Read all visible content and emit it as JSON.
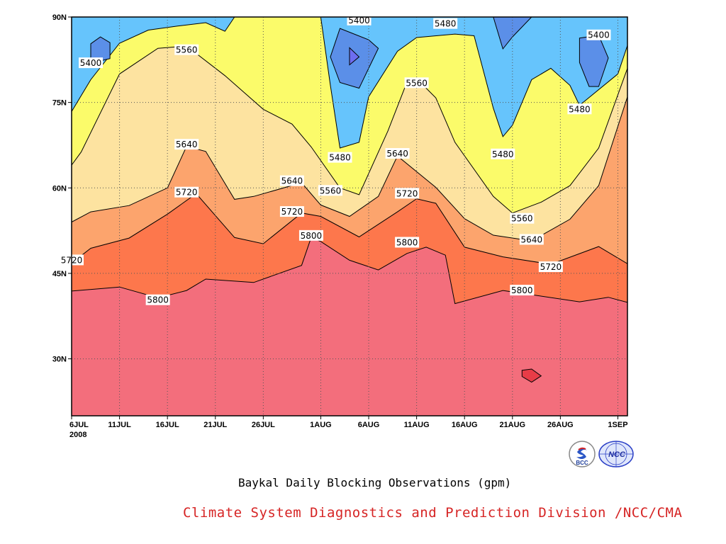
{
  "chart_data": {
    "type": "heatmap",
    "title": "Baykal Daily Blocking Observations (gpm)",
    "credit": "Climate System Diagnostics and Prediction Division /NCC/CMA",
    "x_ticks": [
      "6JUL",
      "11JUL",
      "16JUL",
      "21JUL",
      "26JUL",
      "1AUG",
      "6AUG",
      "11AUG",
      "16AUG",
      "21AUG",
      "26AUG",
      "1SEP"
    ],
    "x_year_label": "2008",
    "y_ticks": [
      "30N",
      "45N",
      "60N",
      "75N",
      "90N"
    ],
    "x_range": [
      "2008-07-06",
      "2008-09-02"
    ],
    "y_range": [
      20,
      90
    ],
    "grid": true,
    "levels": [
      5400,
      5480,
      5560,
      5640,
      5720,
      5800
    ],
    "colors": {
      "below_5400": "#5b8fe8",
      "5400_5480": "#66c4fc",
      "5480_5560": "#fbfb6a",
      "5560_5640": "#fde3a0",
      "5640_5720": "#fca46d",
      "5720_5800": "#fd774c",
      "above_5800": "#f36e7c",
      "above_5880": "#e83c47",
      "lowest": "#6d6df0"
    },
    "contour_labels": [
      {
        "value": "5400",
        "date": "2008-07-08",
        "lat": 81.9
      },
      {
        "value": "5560",
        "date": "2008-07-18",
        "lat": 84.2
      },
      {
        "value": "5400",
        "date": "2008-08-05",
        "lat": 89.4
      },
      {
        "value": "5480",
        "date": "2008-08-14",
        "lat": 88.8
      },
      {
        "value": "5400",
        "date": "2008-08-30",
        "lat": 86.8
      },
      {
        "value": "5560",
        "date": "2008-08-11",
        "lat": 78.4
      },
      {
        "value": "5480",
        "date": "2008-08-28",
        "lat": 73.8
      },
      {
        "value": "5480",
        "date": "2008-08-03",
        "lat": 65.3
      },
      {
        "value": "5480",
        "date": "2008-08-20",
        "lat": 65.9
      },
      {
        "value": "5640",
        "date": "2008-07-18",
        "lat": 67.6
      },
      {
        "value": "5640",
        "date": "2008-08-09",
        "lat": 66.0
      },
      {
        "value": "5640",
        "date": "2008-07-29",
        "lat": 61.2
      },
      {
        "value": "5560",
        "date": "2008-08-02",
        "lat": 59.5
      },
      {
        "value": "5720",
        "date": "2008-07-18",
        "lat": 59.2
      },
      {
        "value": "5720",
        "date": "2008-08-10",
        "lat": 59.0
      },
      {
        "value": "5560",
        "date": "2008-08-22",
        "lat": 54.6
      },
      {
        "value": "5720",
        "date": "2008-07-29",
        "lat": 55.8
      },
      {
        "value": "5640",
        "date": "2008-08-23",
        "lat": 50.9
      },
      {
        "value": "5800",
        "date": "2008-07-31",
        "lat": 51.6
      },
      {
        "value": "5800",
        "date": "2008-08-10",
        "lat": 50.4
      },
      {
        "value": "5720",
        "date": "2008-07-06",
        "lat": 47.3
      },
      {
        "value": "5720",
        "date": "2008-08-25",
        "lat": 46.1
      },
      {
        "value": "5800",
        "date": "2008-08-22",
        "lat": 42.0
      },
      {
        "value": "5800",
        "date": "2008-07-15",
        "lat": 40.3
      }
    ],
    "bands": [
      {
        "level": "5800",
        "color": "#f36e7c",
        "points": [
          [
            "2008-07-06",
            41.9
          ],
          [
            "2008-07-11",
            42.6
          ],
          [
            "2008-07-15",
            40.7
          ],
          [
            "2008-07-18",
            42.0
          ],
          [
            "2008-07-20",
            44.0
          ],
          [
            "2008-07-25",
            43.4
          ],
          [
            "2008-07-30",
            46.4
          ],
          [
            "2008-07-31",
            51.3
          ],
          [
            "2008-08-01",
            50.6
          ],
          [
            "2008-08-04",
            47.3
          ],
          [
            "2008-08-07",
            45.6
          ],
          [
            "2008-08-10",
            48.5
          ],
          [
            "2008-08-12",
            49.6
          ],
          [
            "2008-08-14",
            48.2
          ],
          [
            "2008-08-15",
            39.7
          ],
          [
            "2008-08-20",
            42.0
          ],
          [
            "2008-08-28",
            40.0
          ],
          [
            "2008-08-31",
            40.8
          ],
          [
            "2008-09-02",
            39.9
          ]
        ]
      },
      {
        "level": "5720",
        "color": "#fd774c",
        "points": [
          [
            "2008-07-06",
            46.8
          ],
          [
            "2008-07-08",
            49.4
          ],
          [
            "2008-07-12",
            51.2
          ],
          [
            "2008-07-16",
            55.4
          ],
          [
            "2008-07-19",
            59.0
          ],
          [
            "2008-07-23",
            51.3
          ],
          [
            "2008-07-26",
            50.2
          ],
          [
            "2008-07-30",
            55.6
          ],
          [
            "2008-08-01",
            55.0
          ],
          [
            "2008-08-05",
            51.4
          ],
          [
            "2008-08-09",
            55.8
          ],
          [
            "2008-08-11",
            58.1
          ],
          [
            "2008-08-13",
            57.3
          ],
          [
            "2008-08-16",
            49.6
          ],
          [
            "2008-08-20",
            47.9
          ],
          [
            "2008-08-25",
            46.6
          ],
          [
            "2008-08-30",
            49.7
          ],
          [
            "2008-09-02",
            46.7
          ]
        ]
      },
      {
        "level": "5640",
        "color": "#fca46d",
        "points": [
          [
            "2008-07-06",
            54.0
          ],
          [
            "2008-07-08",
            55.8
          ],
          [
            "2008-07-12",
            56.9
          ],
          [
            "2008-07-16",
            60.0
          ],
          [
            "2008-07-18",
            67.3
          ],
          [
            "2008-07-20",
            66.4
          ],
          [
            "2008-07-23",
            58.0
          ],
          [
            "2008-07-25",
            58.5
          ],
          [
            "2008-07-30",
            60.9
          ],
          [
            "2008-08-01",
            57.0
          ],
          [
            "2008-08-04",
            55.0
          ],
          [
            "2008-08-07",
            58.5
          ],
          [
            "2008-08-09",
            65.6
          ],
          [
            "2008-08-13",
            60.1
          ],
          [
            "2008-08-16",
            54.6
          ],
          [
            "2008-08-19",
            51.7
          ],
          [
            "2008-08-23",
            50.7
          ],
          [
            "2008-08-27",
            54.5
          ],
          [
            "2008-08-30",
            60.4
          ],
          [
            "2008-09-02",
            76.0
          ]
        ]
      },
      {
        "level": "5560",
        "color": "#fde3a0",
        "points": [
          [
            "2008-07-06",
            64.0
          ],
          [
            "2008-07-07",
            66.3
          ],
          [
            "2008-07-11",
            80.0
          ],
          [
            "2008-07-15",
            84.5
          ],
          [
            "2008-07-18",
            84.9
          ],
          [
            "2008-07-22",
            79.7
          ],
          [
            "2008-07-26",
            73.8
          ],
          [
            "2008-07-29",
            71.2
          ],
          [
            "2008-07-31",
            67.2
          ],
          [
            "2008-08-03",
            60.0
          ],
          [
            "2008-08-05",
            58.8
          ],
          [
            "2008-08-08",
            70.0
          ],
          [
            "2008-08-10",
            78.6
          ],
          [
            "2008-08-11",
            79.2
          ],
          [
            "2008-08-13",
            75.8
          ],
          [
            "2008-08-15",
            68.0
          ],
          [
            "2008-08-19",
            58.5
          ],
          [
            "2008-08-21",
            55.6
          ],
          [
            "2008-08-24",
            57.5
          ],
          [
            "2008-08-27",
            60.4
          ],
          [
            "2008-08-30",
            67.0
          ],
          [
            "2008-09-02",
            81.0
          ]
        ]
      },
      {
        "level": "5480",
        "color": "#fbfb6a",
        "points": [
          [
            "2008-07-06",
            73.4
          ],
          [
            "2008-07-08",
            79.0
          ],
          [
            "2008-07-11",
            85.4
          ],
          [
            "2008-07-14",
            87.7
          ],
          [
            "2008-07-17",
            88.4
          ],
          [
            "2008-07-20",
            89.0
          ],
          [
            "2008-07-22",
            87.5
          ],
          [
            "2008-07-23",
            90.0
          ],
          [
            "2008-08-01",
            90.0
          ],
          [
            "2008-08-02",
            78.0
          ],
          [
            "2008-08-03",
            67.0
          ],
          [
            "2008-08-05",
            68.0
          ],
          [
            "2008-08-06",
            76.0
          ],
          [
            "2008-08-09",
            84.0
          ],
          [
            "2008-08-11",
            86.4
          ],
          [
            "2008-08-15",
            87.0
          ],
          [
            "2008-08-17",
            86.7
          ],
          [
            "2008-08-19",
            74.0
          ],
          [
            "2008-08-20",
            69.0
          ],
          [
            "2008-08-21",
            71.0
          ],
          [
            "2008-08-23",
            79.0
          ],
          [
            "2008-08-25",
            81.0
          ],
          [
            "2008-08-27",
            78.0
          ],
          [
            "2008-08-28",
            74.5
          ],
          [
            "2008-09-01",
            80.0
          ],
          [
            "2008-09-02",
            85.0
          ]
        ]
      }
    ],
    "lows": [
      {
        "color": "#5b8fe8",
        "points": [
          [
            "2008-07-08",
            81.9
          ],
          [
            "2008-07-10",
            82.7
          ],
          [
            "2008-07-10",
            85.5
          ],
          [
            "2008-07-09",
            86.5
          ],
          [
            "2008-07-08",
            85.3
          ]
        ]
      },
      {
        "color": "#5b8fe8",
        "points": [
          [
            "2008-08-03",
            88.0
          ],
          [
            "2008-08-06",
            86.0
          ],
          [
            "2008-08-07",
            84.5
          ],
          [
            "2008-08-06",
            81.0
          ],
          [
            "2008-08-05",
            77.5
          ],
          [
            "2008-08-03",
            78.5
          ],
          [
            "2008-08-02",
            83.0
          ]
        ]
      },
      {
        "color": "#6d6df0",
        "points": [
          [
            "2008-08-04",
            84.6
          ],
          [
            "2008-08-05",
            83.0
          ],
          [
            "2008-08-04",
            81.6
          ],
          [
            "2008-08-04",
            83.0
          ]
        ]
      },
      {
        "color": "#5b8fe8",
        "points": [
          [
            "2008-08-19",
            90.0
          ],
          [
            "2008-08-23",
            90.0
          ],
          [
            "2008-08-21",
            86.5
          ],
          [
            "2008-08-20",
            84.4
          ]
        ]
      },
      {
        "color": "#5b8fe8",
        "points": [
          [
            "2008-08-28",
            86.3
          ],
          [
            "2008-08-30",
            86.8
          ],
          [
            "2008-08-31",
            82.8
          ],
          [
            "2008-08-30",
            77.8
          ],
          [
            "2008-08-29",
            77.8
          ],
          [
            "2008-08-28",
            82.0
          ]
        ]
      },
      {
        "color": "#e83c47",
        "points": [
          [
            "2008-08-22",
            28.0
          ],
          [
            "2008-08-23",
            28.2
          ],
          [
            "2008-08-24",
            27.0
          ],
          [
            "2008-08-23",
            25.9
          ],
          [
            "2008-08-22",
            26.9
          ]
        ]
      }
    ]
  },
  "logos": {
    "bcc_text": "BCC",
    "ncc_text": "NCC"
  }
}
